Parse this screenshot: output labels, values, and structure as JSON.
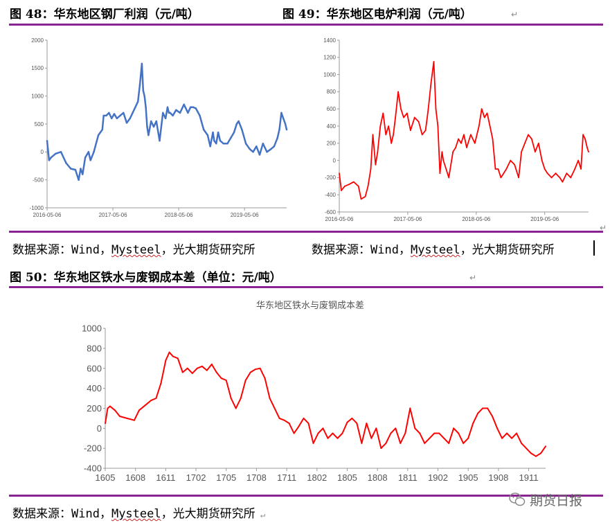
{
  "fig48": {
    "title": "图 48：华东地区钢厂利润（元/吨）"
  },
  "fig49": {
    "title": "图 49：华东地区电炉利润（元/吨）"
  },
  "fig50": {
    "title": "图 50：华东地区铁水与废钢成本差（单位：元/吨）"
  },
  "sources": {
    "left": {
      "prefix": "数据来源：Wind，",
      "mysteel": "Mysteel",
      "suffix": "，光大期货研究所"
    },
    "right": {
      "prefix": "数据来源：Wind，",
      "mysteel": "Mysteel",
      "suffix": "，光大期货研究所"
    },
    "bottom": {
      "prefix": "数据来源：Wind，",
      "mysteel": "Mysteel",
      "suffix": "，光大期货研究所"
    }
  },
  "watermark": {
    "text": "期货日报"
  },
  "colors": {
    "rule": "#8b2291",
    "fig48_line": "#4472c4",
    "fig49_line": "#ff0000",
    "fig50_line": "#ff0000"
  },
  "chart_data": [
    {
      "id": "fig48",
      "type": "line",
      "title": "",
      "ylim": [
        -1000,
        2000
      ],
      "yticks": [
        -1000,
        -500,
        0,
        500,
        1000,
        1500,
        2000
      ],
      "xlim": [
        2016.34,
        2019.98
      ],
      "xticks": [
        {
          "x": 2016.34,
          "label": "2016-05-06"
        },
        {
          "x": 2017.34,
          "label": "2017-05-06"
        },
        {
          "x": 2018.34,
          "label": "2018-05-06"
        },
        {
          "x": 2019.34,
          "label": "2019-05-06"
        }
      ],
      "grid": false,
      "series": [
        {
          "x": [
            2016.34,
            2016.37,
            2016.4,
            2016.47,
            2016.55,
            2016.63,
            2016.7,
            2016.77,
            2016.82,
            2016.85,
            2016.88,
            2016.92,
            2016.97,
            2017.0,
            2017.05,
            2017.12,
            2017.18,
            2017.2,
            2017.24,
            2017.28,
            2017.32,
            2017.36,
            2017.4,
            2017.45,
            2017.5,
            2017.55,
            2017.6,
            2017.64,
            2017.68,
            2017.72,
            2017.75,
            2017.78,
            2017.8,
            2017.82,
            2017.84,
            2017.86,
            2017.88,
            2017.92,
            2017.96,
            2018.0,
            2018.05,
            2018.1,
            2018.14,
            2018.17,
            2018.19,
            2018.21,
            2018.25,
            2018.3,
            2018.36,
            2018.42,
            2018.48,
            2018.52,
            2018.56,
            2018.6,
            2018.66,
            2018.72,
            2018.78,
            2018.82,
            2018.86,
            2018.88,
            2018.91,
            2018.94,
            2018.97,
            2019.02,
            2019.08,
            2019.13,
            2019.18,
            2019.22,
            2019.25,
            2019.3,
            2019.36,
            2019.42,
            2019.47,
            2019.52,
            2019.57,
            2019.62,
            2019.68,
            2019.74,
            2019.79,
            2019.84,
            2019.87,
            2019.9,
            2019.93,
            2019.96,
            2019.98
          ],
          "y": [
            200,
            -150,
            -100,
            -30,
            0,
            -200,
            -300,
            -320,
            -500,
            -300,
            -400,
            -100,
            0,
            -150,
            0,
            300,
            400,
            650,
            650,
            700,
            600,
            680,
            600,
            650,
            700,
            520,
            600,
            700,
            800,
            900,
            1200,
            1580,
            1100,
            1000,
            800,
            450,
            300,
            550,
            450,
            550,
            200,
            700,
            600,
            800,
            700,
            700,
            650,
            750,
            700,
            850,
            700,
            800,
            800,
            780,
            650,
            400,
            300,
            100,
            350,
            200,
            150,
            350,
            200,
            150,
            150,
            250,
            350,
            500,
            550,
            400,
            150,
            50,
            0,
            100,
            -50,
            150,
            0,
            50,
            100,
            250,
            400,
            700,
            600,
            500,
            400
          ]
        }
      ]
    },
    {
      "id": "fig49",
      "type": "line",
      "title": "",
      "ylim": [
        -600,
        1400
      ],
      "yticks": [
        -600,
        -400,
        -200,
        0,
        200,
        400,
        600,
        800,
        1000,
        1200,
        1400
      ],
      "xlim": [
        2016.34,
        2019.98
      ],
      "xticks": [
        {
          "x": 2016.34,
          "label": "2016-05-06"
        },
        {
          "x": 2017.34,
          "label": "2017-05-06"
        },
        {
          "x": 2018.34,
          "label": "2018-05-06"
        },
        {
          "x": 2019.34,
          "label": "2019-05-06"
        }
      ],
      "grid": false,
      "series": [
        {
          "x": [
            2016.34,
            2016.37,
            2016.42,
            2016.48,
            2016.55,
            2016.62,
            2016.66,
            2016.72,
            2016.76,
            2016.8,
            2016.83,
            2016.87,
            2016.9,
            2016.94,
            2016.98,
            2017.02,
            2017.06,
            2017.1,
            2017.13,
            2017.16,
            2017.2,
            2017.24,
            2017.28,
            2017.33,
            2017.38,
            2017.44,
            2017.5,
            2017.55,
            2017.6,
            2017.64,
            2017.68,
            2017.72,
            2017.75,
            2017.78,
            2017.81,
            2017.84,
            2017.86,
            2017.9,
            2017.94,
            2018.0,
            2018.04,
            2018.08,
            2018.12,
            2018.16,
            2018.2,
            2018.26,
            2018.32,
            2018.38,
            2018.42,
            2018.46,
            2018.5,
            2018.54,
            2018.58,
            2018.62,
            2018.66,
            2018.7,
            2018.74,
            2018.78,
            2018.84,
            2018.9,
            2018.96,
            2019.0,
            2019.05,
            2019.1,
            2019.15,
            2019.2,
            2019.25,
            2019.3,
            2019.34,
            2019.38,
            2019.44,
            2019.5,
            2019.56,
            2019.6,
            2019.66,
            2019.72,
            2019.78,
            2019.83,
            2019.87,
            2019.9,
            2019.93,
            2019.96,
            2019.98
          ],
          "y": [
            -150,
            -350,
            -300,
            -280,
            -250,
            -300,
            -450,
            -420,
            -300,
            -100,
            300,
            -50,
            100,
            400,
            550,
            300,
            400,
            200,
            300,
            500,
            800,
            600,
            500,
            550,
            350,
            500,
            450,
            300,
            350,
            600,
            900,
            1150,
            600,
            400,
            -150,
            100,
            0,
            -100,
            -200,
            100,
            150,
            250,
            200,
            300,
            150,
            300,
            200,
            400,
            600,
            500,
            550,
            400,
            250,
            -100,
            -100,
            -200,
            -150,
            -100,
            0,
            -50,
            -200,
            100,
            200,
            300,
            250,
            100,
            200,
            0,
            -100,
            -150,
            -200,
            -150,
            -200,
            -250,
            -150,
            -200,
            -100,
            0,
            -100,
            300,
            250,
            150,
            100
          ]
        }
      ]
    },
    {
      "id": "fig50",
      "type": "line",
      "title": "华东地区铁水与废钢成本差",
      "ylim": [
        -400,
        1000
      ],
      "yticks": [
        -400,
        -200,
        0,
        200,
        400,
        600,
        800,
        1000
      ],
      "xlim": [
        2016.34,
        2019.98
      ],
      "categories": [
        "1605",
        "1608",
        "1611",
        "1702",
        "1705",
        "1708",
        "1711",
        "1802",
        "1805",
        "1808",
        "1811",
        "1902",
        "1905",
        "1908",
        "1911"
      ],
      "xticks": [
        {
          "x": 2016.34,
          "label": "1605"
        },
        {
          "x": 2016.59,
          "label": "1608"
        },
        {
          "x": 2016.84,
          "label": "1611"
        },
        {
          "x": 2017.09,
          "label": "1702"
        },
        {
          "x": 2017.34,
          "label": "1705"
        },
        {
          "x": 2017.59,
          "label": "1708"
        },
        {
          "x": 2017.84,
          "label": "1711"
        },
        {
          "x": 2018.09,
          "label": "1802"
        },
        {
          "x": 2018.34,
          "label": "1805"
        },
        {
          "x": 2018.59,
          "label": "1808"
        },
        {
          "x": 2018.84,
          "label": "1811"
        },
        {
          "x": 2019.09,
          "label": "1902"
        },
        {
          "x": 2019.34,
          "label": "1905"
        },
        {
          "x": 2019.59,
          "label": "1908"
        },
        {
          "x": 2019.84,
          "label": "1911"
        }
      ],
      "grid": false,
      "series": [
        {
          "x": [
            2016.34,
            2016.36,
            2016.38,
            2016.42,
            2016.46,
            2016.52,
            2016.58,
            2016.62,
            2016.68,
            2016.72,
            2016.76,
            2016.8,
            2016.84,
            2016.87,
            2016.9,
            2016.94,
            2016.98,
            2017.02,
            2017.06,
            2017.1,
            2017.14,
            2017.18,
            2017.22,
            2017.26,
            2017.3,
            2017.34,
            2017.38,
            2017.42,
            2017.46,
            2017.5,
            2017.54,
            2017.58,
            2017.62,
            2017.66,
            2017.7,
            2017.74,
            2017.78,
            2017.82,
            2017.86,
            2017.9,
            2017.94,
            2017.98,
            2018.02,
            2018.06,
            2018.1,
            2018.14,
            2018.18,
            2018.22,
            2018.26,
            2018.3,
            2018.34,
            2018.38,
            2018.42,
            2018.46,
            2018.5,
            2018.54,
            2018.58,
            2018.62,
            2018.66,
            2018.7,
            2018.74,
            2018.78,
            2018.82,
            2018.86,
            2018.9,
            2018.94,
            2018.98,
            2019.02,
            2019.06,
            2019.1,
            2019.14,
            2019.18,
            2019.22,
            2019.26,
            2019.3,
            2019.34,
            2019.38,
            2019.42,
            2019.46,
            2019.5,
            2019.54,
            2019.58,
            2019.62,
            2019.66,
            2019.7,
            2019.74,
            2019.78,
            2019.82,
            2019.86,
            2019.9,
            2019.94,
            2019.98
          ],
          "y": [
            50,
            200,
            220,
            180,
            120,
            100,
            80,
            180,
            240,
            280,
            300,
            450,
            680,
            760,
            720,
            700,
            560,
            600,
            550,
            600,
            620,
            580,
            640,
            560,
            500,
            480,
            300,
            200,
            300,
            480,
            560,
            590,
            600,
            500,
            300,
            200,
            100,
            80,
            50,
            -50,
            20,
            100,
            50,
            -150,
            -50,
            0,
            -100,
            -50,
            -100,
            -50,
            60,
            100,
            50,
            -150,
            50,
            -100,
            0,
            -200,
            -150,
            -50,
            0,
            -150,
            -50,
            200,
            0,
            -50,
            -150,
            -100,
            -50,
            -50,
            -100,
            -150,
            0,
            -50,
            -150,
            -100,
            50,
            150,
            200,
            200,
            120,
            0,
            -100,
            -50,
            -100,
            -50,
            -150,
            -200,
            -250,
            -280,
            -250,
            -180
          ]
        }
      ]
    }
  ]
}
